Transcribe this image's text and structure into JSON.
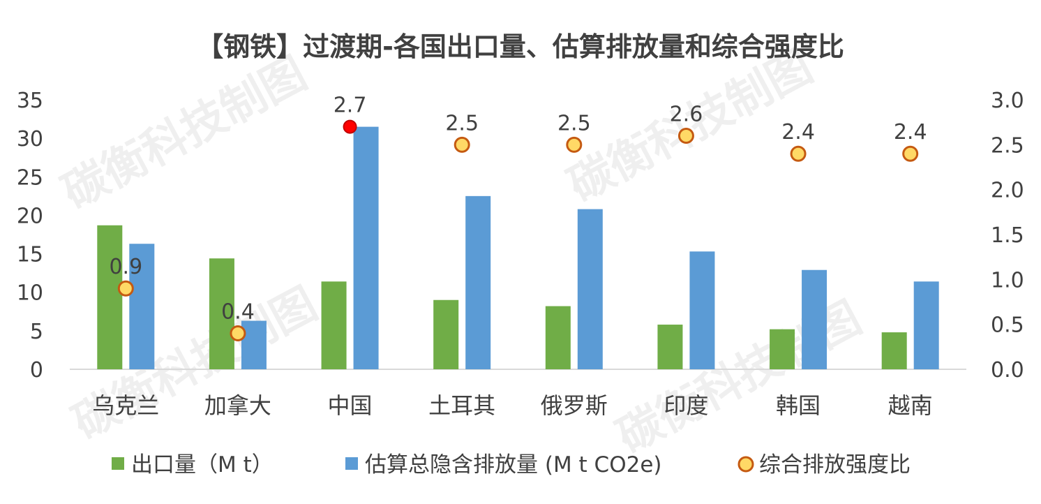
{
  "chart_data": {
    "type": "bar",
    "title": "【钢铁】过渡期-各国出口量、估算排放量和综合强度比",
    "categories": [
      "乌克兰",
      "加拿大",
      "中国",
      "土耳其",
      "俄罗斯",
      "印度",
      "韩国",
      "越南"
    ],
    "series": [
      {
        "name": "出口量（M t）",
        "type": "bar",
        "axis": "left",
        "color": "#70ad47",
        "values": [
          18.7,
          14.4,
          11.4,
          9.0,
          8.2,
          5.8,
          5.2,
          4.8
        ]
      },
      {
        "name": "估算总隐含排放量 (M t CO2e)",
        "type": "bar",
        "axis": "left",
        "color": "#5b9bd5",
        "values": [
          16.3,
          6.3,
          31.5,
          22.5,
          20.8,
          15.3,
          12.9,
          11.4
        ]
      },
      {
        "name": "综合排放强度比",
        "type": "scatter",
        "axis": "right",
        "color": "#ffd966",
        "edge": "#c55a11",
        "values": [
          0.9,
          0.4,
          2.7,
          2.5,
          2.5,
          2.6,
          2.4,
          2.4
        ],
        "labels": [
          "0.9",
          "0.4",
          "2.7",
          "2.5",
          "2.5",
          "2.6",
          "2.4",
          "2.4"
        ],
        "highlight_index": 2,
        "highlight_color": "#ff0000"
      }
    ],
    "ylim_left": [
      0,
      35
    ],
    "yticks_left": [
      "0",
      "5",
      "10",
      "15",
      "20",
      "25",
      "30",
      "35"
    ],
    "ylim_right": [
      0,
      3.0
    ],
    "yticks_right": [
      "0.0",
      "0.5",
      "1.0",
      "1.5",
      "2.0",
      "2.5",
      "3.0"
    ],
    "legend_position": "bottom",
    "grid": false
  },
  "watermark": "碳衡科技制图"
}
